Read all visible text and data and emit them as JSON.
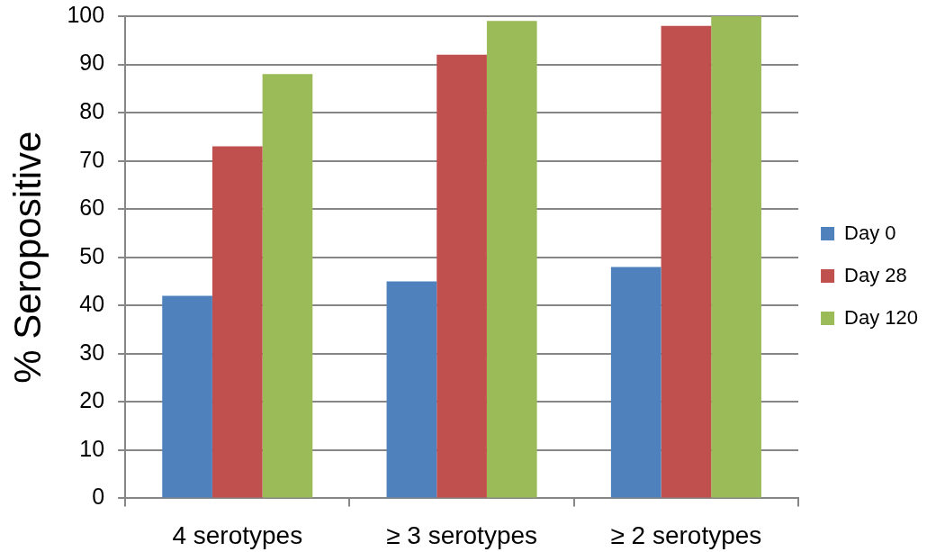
{
  "chart_data": {
    "type": "bar",
    "ylabel": "% Seropositive",
    "categories": [
      "4 serotypes",
      "≥ 3 serotypes",
      "≥ 2 serotypes"
    ],
    "series": [
      {
        "name": "Day 0",
        "color": "#4f81bd",
        "values": [
          42,
          45,
          48
        ]
      },
      {
        "name": "Day 28",
        "color": "#c0504d",
        "values": [
          73,
          92,
          98
        ]
      },
      {
        "name": "Day 120",
        "color": "#9bbb59",
        "values": [
          88,
          99,
          100
        ]
      }
    ],
    "ylim": [
      0,
      100
    ],
    "yticks": [
      0,
      10,
      20,
      30,
      40,
      50,
      60,
      70,
      80,
      90,
      100
    ],
    "grid": "y",
    "legend": "right"
  }
}
